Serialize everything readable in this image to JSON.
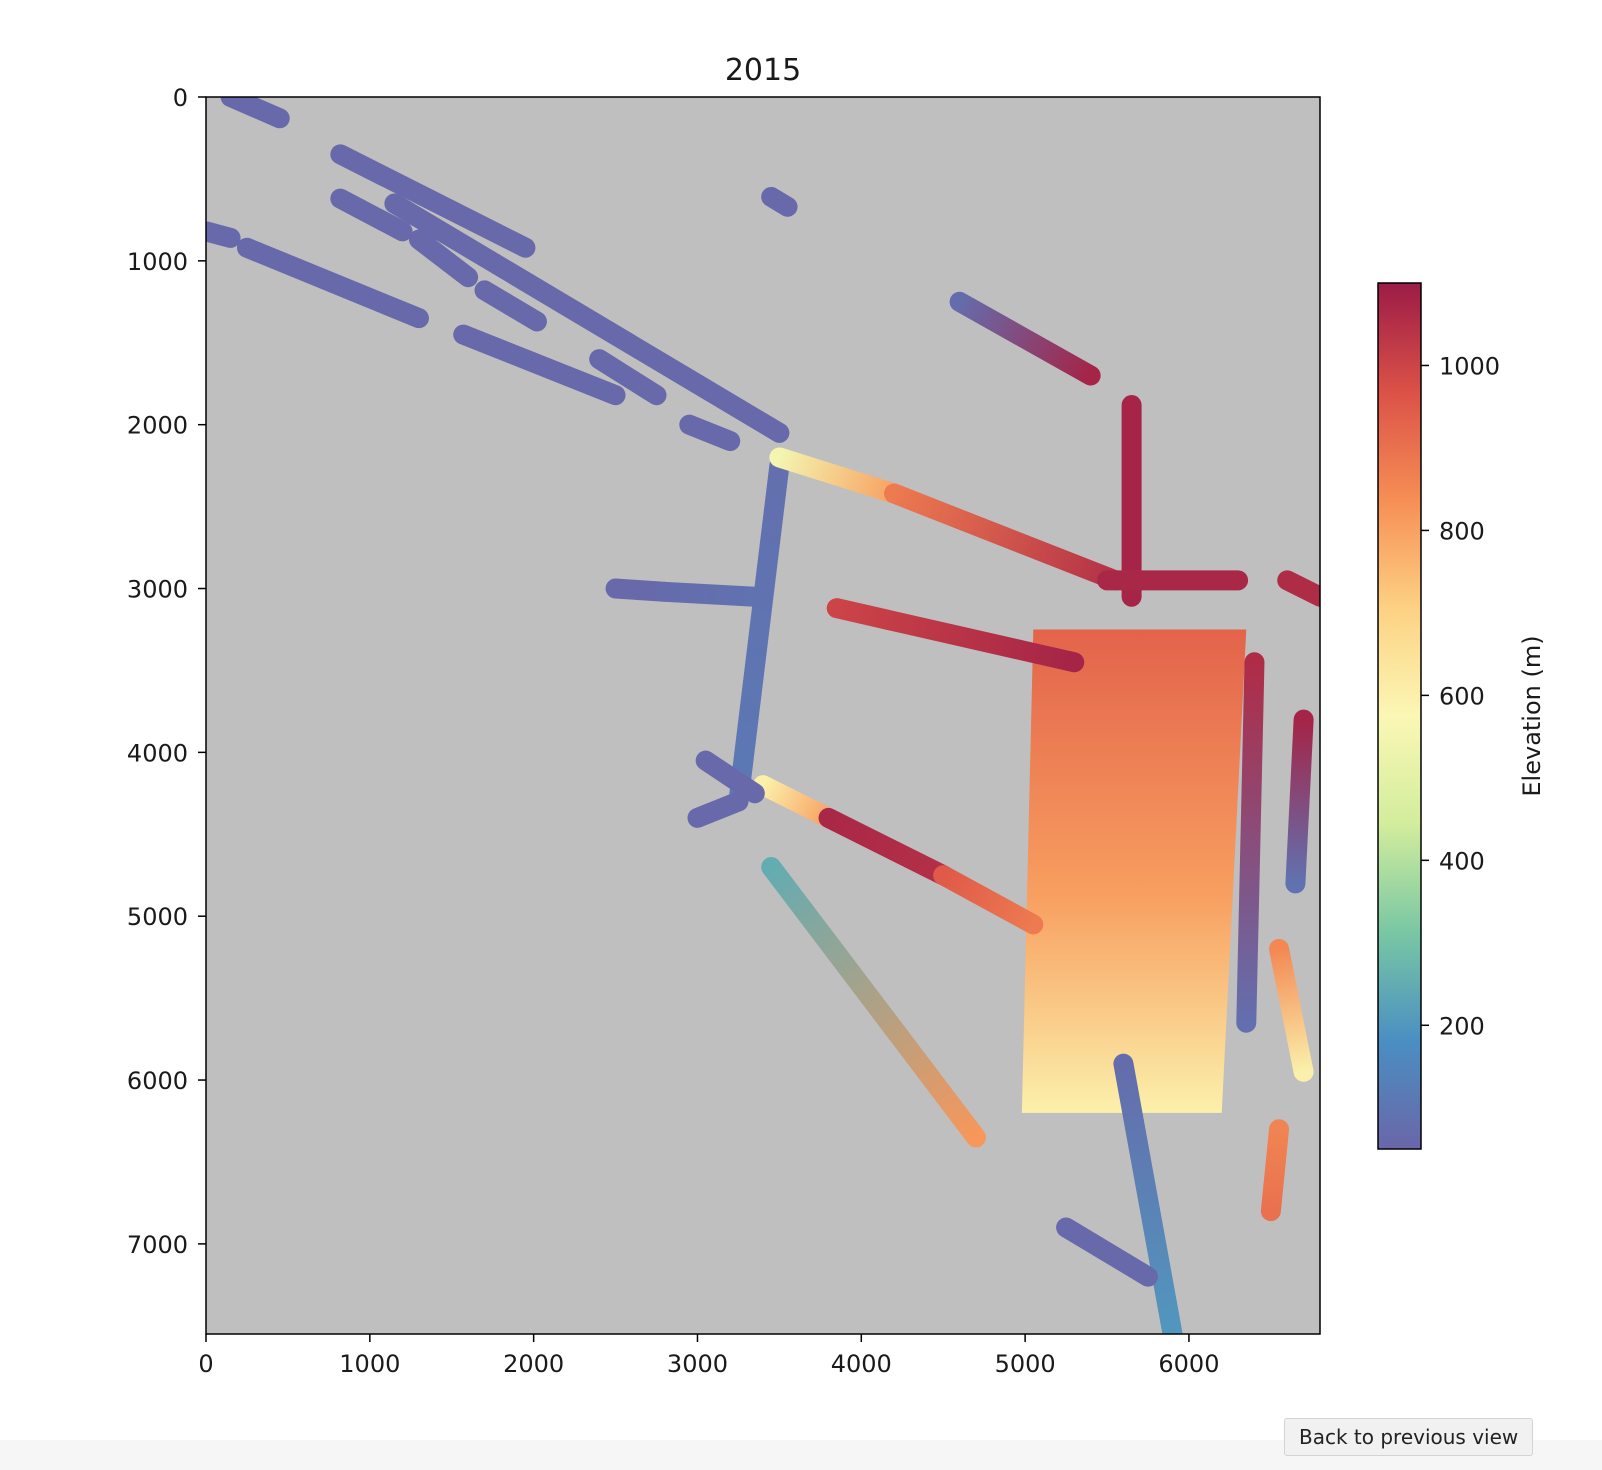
{
  "chart_data": {
    "type": "heatmap",
    "title": "2015",
    "xlabel": "",
    "ylabel": "",
    "xlim": [
      0,
      6800
    ],
    "ylim": [
      7550,
      0
    ],
    "x_ticks": [
      0,
      1000,
      2000,
      3000,
      4000,
      5000,
      6000
    ],
    "y_ticks": [
      0,
      1000,
      2000,
      3000,
      4000,
      5000,
      6000,
      7000
    ],
    "background": "#bfbfbf",
    "colormap": "Spectral_r",
    "colorbar": {
      "label": "Elevation (m)",
      "range": [
        50,
        1100
      ],
      "ticks": [
        200,
        400,
        600,
        800,
        1000
      ],
      "colors": [
        "#6a66a8",
        "#4a8fc2",
        "#79c7a4",
        "#d2ed9c",
        "#fbf7b5",
        "#fdd183",
        "#f68e55",
        "#db5147",
        "#9b1c47"
      ]
    },
    "tracks": [
      {
        "x1": 150,
        "y1": 0,
        "x2": 450,
        "y2": 130,
        "e1": 60,
        "e2": 60
      },
      {
        "x1": 820,
        "y1": 350,
        "x2": 1950,
        "y2": 920,
        "e1": 60,
        "e2": 60
      },
      {
        "x1": 1150,
        "y1": 650,
        "x2": 3500,
        "y2": 2050,
        "e1": 60,
        "e2": 60
      },
      {
        "x1": 820,
        "y1": 620,
        "x2": 1200,
        "y2": 820,
        "e1": 60,
        "e2": 60
      },
      {
        "x1": 0,
        "y1": 820,
        "x2": 150,
        "y2": 860,
        "e1": 60,
        "e2": 60
      },
      {
        "x1": 250,
        "y1": 920,
        "x2": 1300,
        "y2": 1350,
        "e1": 60,
        "e2": 60
      },
      {
        "x1": 1300,
        "y1": 870,
        "x2": 1600,
        "y2": 1100,
        "e1": 60,
        "e2": 60
      },
      {
        "x1": 1700,
        "y1": 1180,
        "x2": 2020,
        "y2": 1370,
        "e1": 60,
        "e2": 60
      },
      {
        "x1": 1570,
        "y1": 1450,
        "x2": 2500,
        "y2": 1820,
        "e1": 60,
        "e2": 60
      },
      {
        "x1": 2400,
        "y1": 1600,
        "x2": 2750,
        "y2": 1820,
        "e1": 60,
        "e2": 60
      },
      {
        "x1": 2950,
        "y1": 2000,
        "x2": 3200,
        "y2": 2100,
        "e1": 60,
        "e2": 60
      },
      {
        "x1": 3450,
        "y1": 610,
        "x2": 3550,
        "y2": 670,
        "e1": 60,
        "e2": 60
      },
      {
        "x1": 2500,
        "y1": 3000,
        "x2": 2800,
        "y2": 3020,
        "e1": 60,
        "e2": 60
      },
      {
        "x1": 2800,
        "y1": 3020,
        "x2": 3350,
        "y2": 3050,
        "e1": 70,
        "e2": 90
      },
      {
        "x1": 3500,
        "y1": 2250,
        "x2": 3250,
        "y2": 4300,
        "e1": 80,
        "e2": 110
      },
      {
        "x1": 3500,
        "y1": 2200,
        "x2": 4200,
        "y2": 2420,
        "e1": 550,
        "e2": 800
      },
      {
        "x1": 4200,
        "y1": 2420,
        "x2": 5550,
        "y2": 2950,
        "e1": 880,
        "e2": 1050
      },
      {
        "x1": 3850,
        "y1": 3120,
        "x2": 5300,
        "y2": 3450,
        "e1": 1000,
        "e2": 1080
      },
      {
        "x1": 3400,
        "y1": 4200,
        "x2": 3800,
        "y2": 4400,
        "e1": 600,
        "e2": 800
      },
      {
        "x1": 3800,
        "y1": 4400,
        "x2": 4500,
        "y2": 4750,
        "e1": 1070,
        "e2": 1050
      },
      {
        "x1": 4500,
        "y1": 4750,
        "x2": 5050,
        "y2": 5050,
        "e1": 950,
        "e2": 880
      },
      {
        "x1": 3450,
        "y1": 4700,
        "x2": 4700,
        "y2": 6350,
        "e1": 250,
        "e2": 820
      },
      {
        "x1": 4600,
        "y1": 1250,
        "x2": 5400,
        "y2": 1700,
        "e1": 70,
        "e2": 1080
      },
      {
        "x1": 5650,
        "y1": 1880,
        "x2": 5650,
        "y2": 3050,
        "e1": 1080,
        "e2": 1080
      },
      {
        "x1": 5500,
        "y1": 2950,
        "x2": 6300,
        "y2": 2950,
        "e1": 1070,
        "e2": 1070
      },
      {
        "x1": 6400,
        "y1": 3450,
        "x2": 6350,
        "y2": 5650,
        "e1": 1060,
        "e2": 80
      },
      {
        "x1": 6700,
        "y1": 3800,
        "x2": 6650,
        "y2": 4800,
        "e1": 1080,
        "e2": 90
      },
      {
        "x1": 6600,
        "y1": 2950,
        "x2": 6800,
        "y2": 3050,
        "e1": 1060,
        "e2": 1060
      },
      {
        "x1": 6550,
        "y1": 5200,
        "x2": 6700,
        "y2": 5950,
        "e1": 850,
        "e2": 600
      },
      {
        "x1": 6550,
        "y1": 6300,
        "x2": 6500,
        "y2": 6800,
        "e1": 860,
        "e2": 900
      },
      {
        "x1": 3050,
        "y1": 4050,
        "x2": 3350,
        "y2": 4250,
        "e1": 60,
        "e2": 60
      },
      {
        "x1": 3000,
        "y1": 4400,
        "x2": 3250,
        "y2": 4300,
        "e1": 60,
        "e2": 60
      },
      {
        "x1": 5600,
        "y1": 5900,
        "x2": 5900,
        "y2": 7550,
        "e1": 70,
        "e2": 200
      },
      {
        "x1": 5250,
        "y1": 6900,
        "x2": 5750,
        "y2": 7200,
        "e1": 60,
        "e2": 60
      }
    ],
    "blocks": [
      {
        "corners": [
          [
            5050,
            3250
          ],
          [
            6350,
            3250
          ],
          [
            6200,
            6200
          ],
          [
            4980,
            6200
          ]
        ],
        "e_top": 930,
        "e_bottom": 600
      }
    ]
  },
  "ui": {
    "back_button": "Back to previous view"
  }
}
